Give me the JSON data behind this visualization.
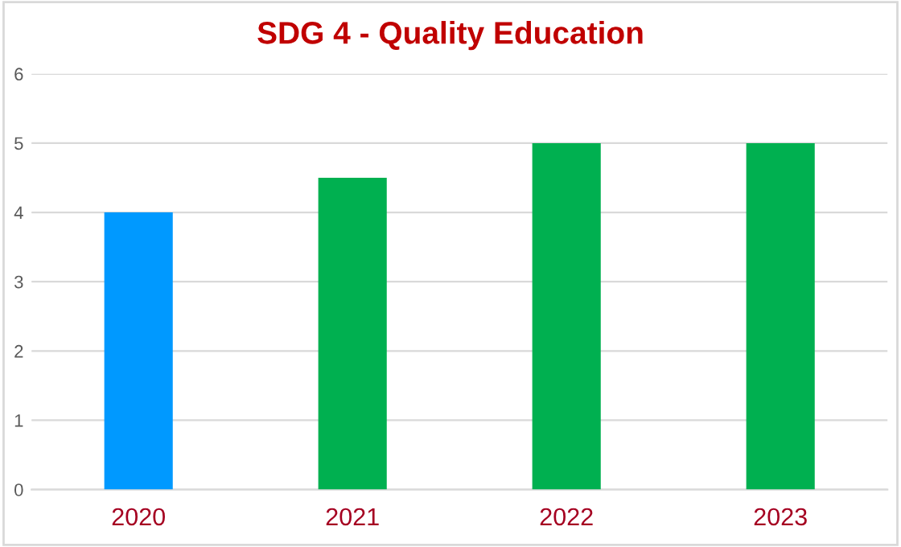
{
  "chart_data": {
    "type": "bar",
    "title": "SDG 4 - Quality Education",
    "categories": [
      "2020",
      "2021",
      "2022",
      "2023"
    ],
    "values": [
      4,
      4.5,
      5,
      5
    ],
    "colors": [
      "#0099ff",
      "#00b050",
      "#00b050",
      "#00b050"
    ],
    "ylim": [
      0,
      6
    ],
    "yticks": [
      0,
      1,
      2,
      3,
      4,
      5,
      6
    ],
    "grid": "y",
    "legend": false
  }
}
